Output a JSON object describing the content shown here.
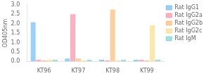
{
  "chart_data": {
    "type": "bar",
    "categories": [
      "KT96",
      "KT97",
      "KT98",
      "KT99"
    ],
    "series": [
      {
        "name": "Rat IgG1",
        "values": [
          2.08,
          0.15,
          0.1,
          0.1
        ]
      },
      {
        "name": "Rat IgG2a",
        "values": [
          0.1,
          2.5,
          0.05,
          0.1
        ]
      },
      {
        "name": "Rat IgG2b",
        "values": [
          0.05,
          0.15,
          2.75,
          0.05
        ]
      },
      {
        "name": "Rat IgG2c",
        "values": [
          0.1,
          0.05,
          0.05,
          1.9
        ]
      },
      {
        "name": "Rat IgM",
        "values": [
          0.1,
          0.1,
          0.1,
          0.1
        ]
      }
    ],
    "ylabel": "OD405nm",
    "ylim": [
      0,
      3.0
    ],
    "yticks": [
      {
        "value": 0,
        "label": "0.0"
      },
      0.5,
      {
        "value": 1,
        "label": "1.0"
      },
      1.5,
      {
        "value": 2,
        "label": "2.0"
      },
      2.5,
      {
        "value": 3,
        "label": "3.0"
      }
    ],
    "grid": false,
    "legend": "right"
  }
}
